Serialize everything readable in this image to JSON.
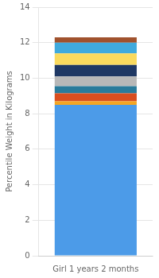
{
  "chart_data": {
    "type": "bar",
    "stacked": true,
    "categories": [
      "Girl 1 years 2 months"
    ],
    "series": [
      {
        "color": "#4C9BE8",
        "values": [
          8.5
        ]
      },
      {
        "color": "#F5A623",
        "values": [
          0.2
        ]
      },
      {
        "color": "#D94E1F",
        "values": [
          0.45
        ]
      },
      {
        "color": "#2A7B9B",
        "values": [
          0.4
        ]
      },
      {
        "color": "#B8B8B8",
        "values": [
          0.55
        ]
      },
      {
        "color": "#1F3864",
        "values": [
          0.65
        ]
      },
      {
        "color": "#FADA5E",
        "values": [
          0.65
        ]
      },
      {
        "color": "#40AADD",
        "values": [
          0.6
        ]
      },
      {
        "color": "#A0522D",
        "values": [
          0.3
        ]
      }
    ],
    "ylabel": "Percentile Weight in Kilograms",
    "ylim": [
      0,
      14
    ],
    "yticks": [
      0,
      2,
      4,
      6,
      8,
      10,
      12,
      14
    ],
    "grid": true
  }
}
